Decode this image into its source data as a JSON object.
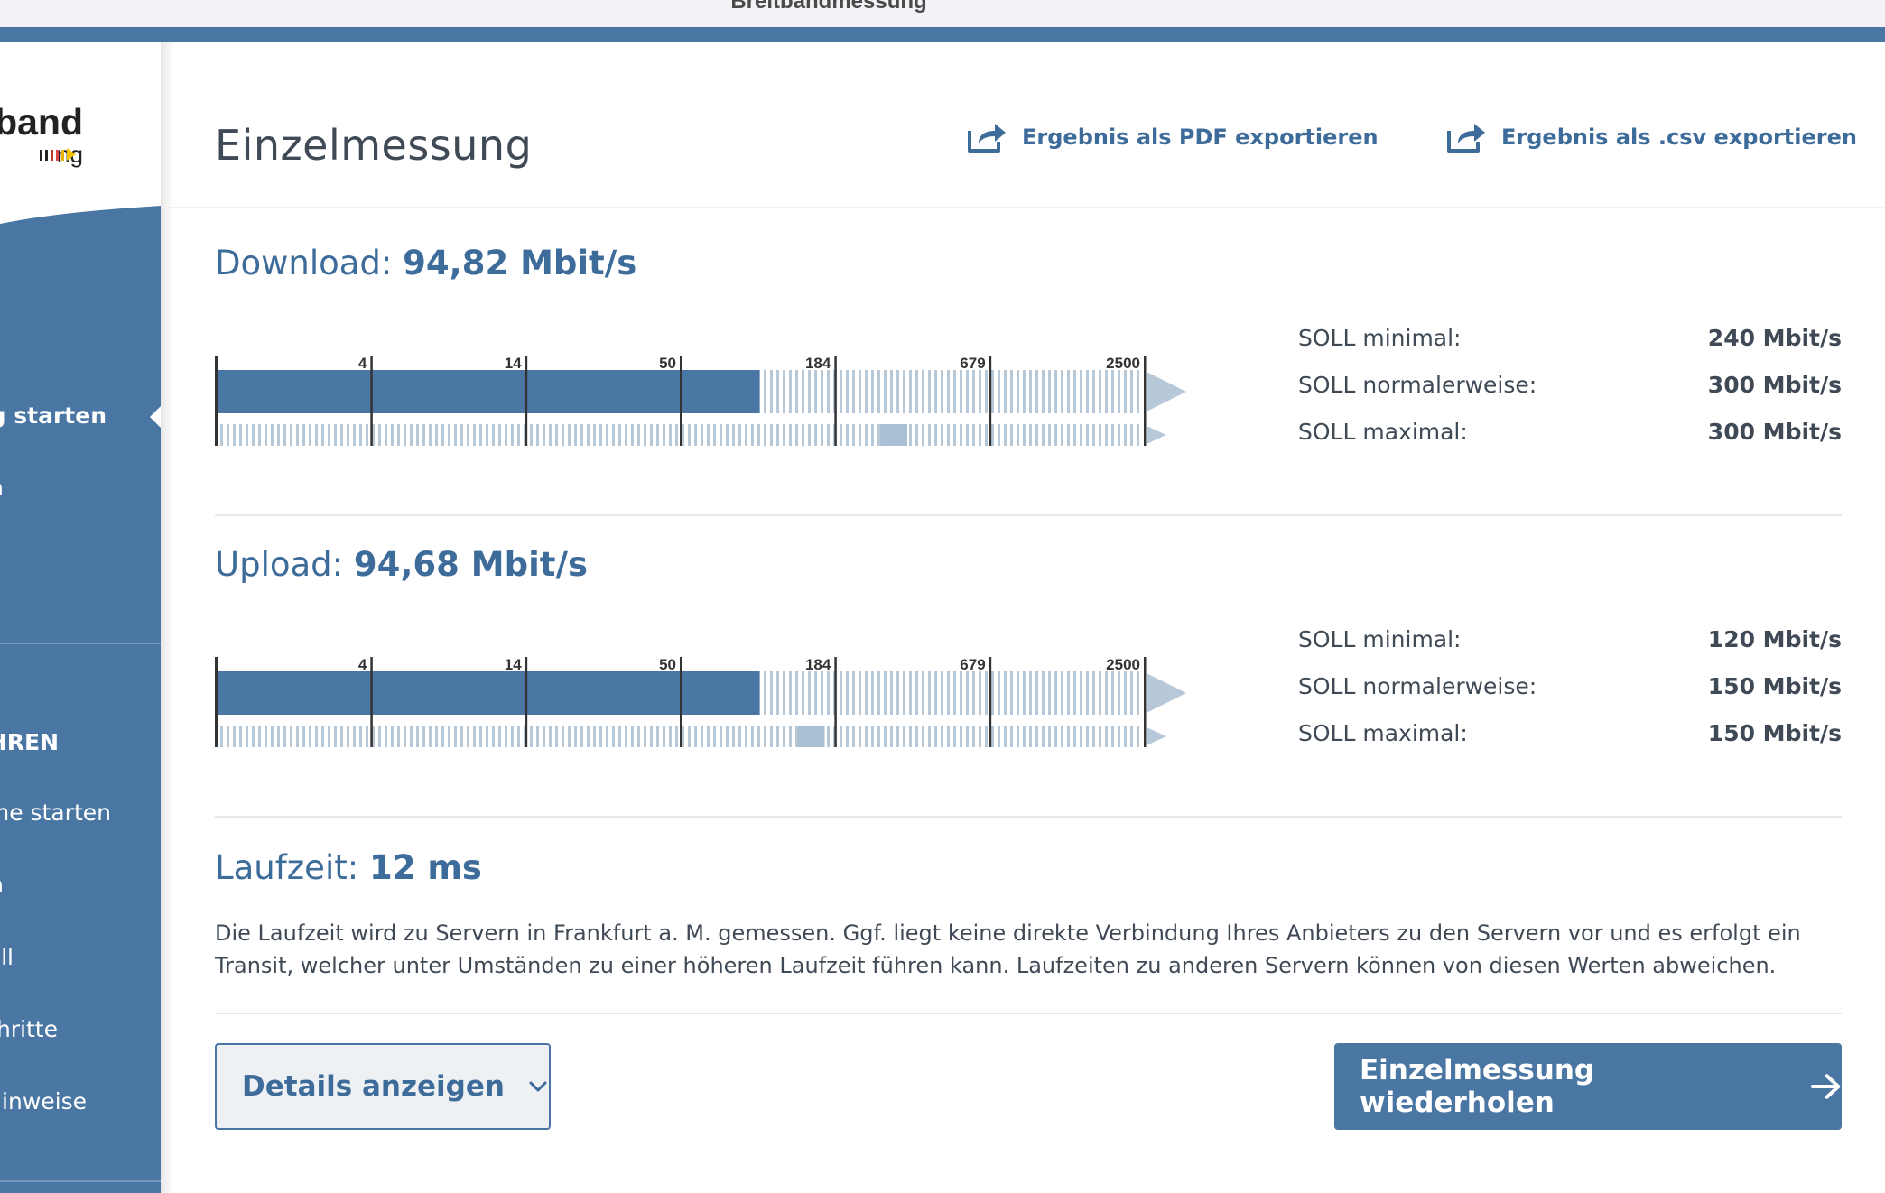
{
  "window": {
    "title": "Breitbandmessung"
  },
  "sidebar": {
    "logo_word": "band",
    "logo_sub": "ng",
    "items": [
      {
        "label": "ng starten",
        "active": true,
        "bold": true
      },
      {
        "label": "n"
      },
      {
        "label": "HREN",
        "bold": true
      },
      {
        "label": "ne starten"
      },
      {
        "label": "n"
      },
      {
        "label": "ll"
      },
      {
        "label": "hritte"
      },
      {
        "label": "linweise"
      }
    ]
  },
  "header": {
    "title": "Einzelmessung",
    "export_pdf": "Ergebnis als PDF exportieren",
    "export_csv": "Ergebnis als .csv exportieren"
  },
  "download": {
    "label": "Download:",
    "value": "94,82 Mbit/s",
    "scale_ticks": [
      "4",
      "14",
      "50",
      "184",
      "679",
      "2500"
    ],
    "measured_fraction": 0.585,
    "soll_marker_fraction": 0.715,
    "soll": [
      {
        "label": "SOLL minimal:",
        "value": "240 Mbit/s"
      },
      {
        "label": "SOLL normalerweise:",
        "value": "300 Mbit/s"
      },
      {
        "label": "SOLL maximal:",
        "value": "300 Mbit/s"
      }
    ]
  },
  "upload": {
    "label": "Upload:",
    "value": "94,68 Mbit/s",
    "scale_ticks": [
      "4",
      "14",
      "50",
      "184",
      "679",
      "2500"
    ],
    "measured_fraction": 0.585,
    "soll_marker_fraction": 0.626,
    "soll": [
      {
        "label": "SOLL minimal:",
        "value": "120 Mbit/s"
      },
      {
        "label": "SOLL normalerweise:",
        "value": "150 Mbit/s"
      },
      {
        "label": "SOLL maximal:",
        "value": "150 Mbit/s"
      }
    ]
  },
  "latency": {
    "label": "Laufzeit:",
    "value": "12 ms",
    "description": "Die Laufzeit wird zu Servern in Frankfurt a. M. gemessen. Ggf. liegt keine direkte Verbindung Ihres Anbieters zu den Servern vor und es erfolgt ein Transit, welcher unter Umständen zu einer höheren Laufzeit führen kann. Laufzeiten zu anderen Servern können von diesen Werten abweichen."
  },
  "actions": {
    "details": "Details anzeigen",
    "repeat": "Einzelmessung wiederholen"
  },
  "colors": {
    "primary": "#4a76a3",
    "link": "#3d6c9b",
    "stripes": "#b7c8d9",
    "marker": "#a9bfd4"
  },
  "icons": [
    "export-icon",
    "chevron-down-icon",
    "arrow-right-icon"
  ]
}
